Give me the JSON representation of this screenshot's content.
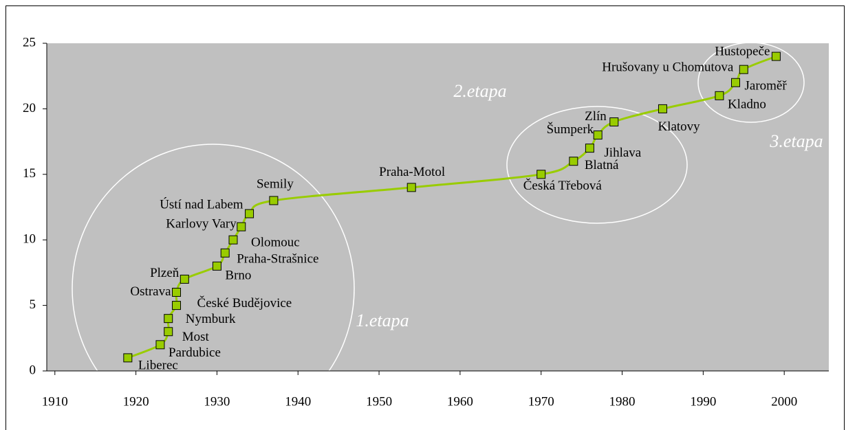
{
  "chart_data": {
    "type": "line",
    "x": [
      1919,
      1923,
      1924,
      1924,
      1925,
      1925,
      1926,
      1930,
      1931,
      1932,
      1933,
      1934,
      1937,
      1954,
      1970,
      1974,
      1976,
      1977,
      1979,
      1985,
      1992,
      1994,
      1995,
      1999
    ],
    "values": [
      1,
      2,
      3,
      4,
      5,
      6,
      7,
      8,
      9,
      10,
      11,
      12,
      13,
      14,
      15,
      16,
      17,
      18,
      19,
      20,
      21,
      22,
      23,
      24
    ],
    "labels": [
      "Liberec",
      "Pardubice",
      "Most",
      "Nymburk",
      "České Budějovice",
      "Ostrava",
      "Plzeň",
      "Brno",
      "Praha-Strašnice",
      "Olomouc",
      "Karlovy Vary",
      "Ústí nad Labem",
      "Semily",
      "Praha-Motol",
      "Česká Třebová",
      "Blatná",
      "Jihlava",
      "Šumperk",
      "Zlín",
      "Klatovy",
      "Kladno",
      "Jaroměř",
      "Hrušovany u Chomutova",
      "Hustopeče"
    ],
    "color": "#99cc00",
    "annotations": [
      "1.etapa",
      "2.etapa",
      "3.etapa"
    ],
    "xlim": [
      1909,
      2005.5
    ],
    "xticks": [
      1910,
      1920,
      1930,
      1940,
      1950,
      1960,
      1970,
      1980,
      1990,
      2000
    ],
    "ylim": [
      0,
      25
    ],
    "yticks": [
      0,
      5,
      10,
      15,
      20,
      25
    ],
    "grid": false
  }
}
